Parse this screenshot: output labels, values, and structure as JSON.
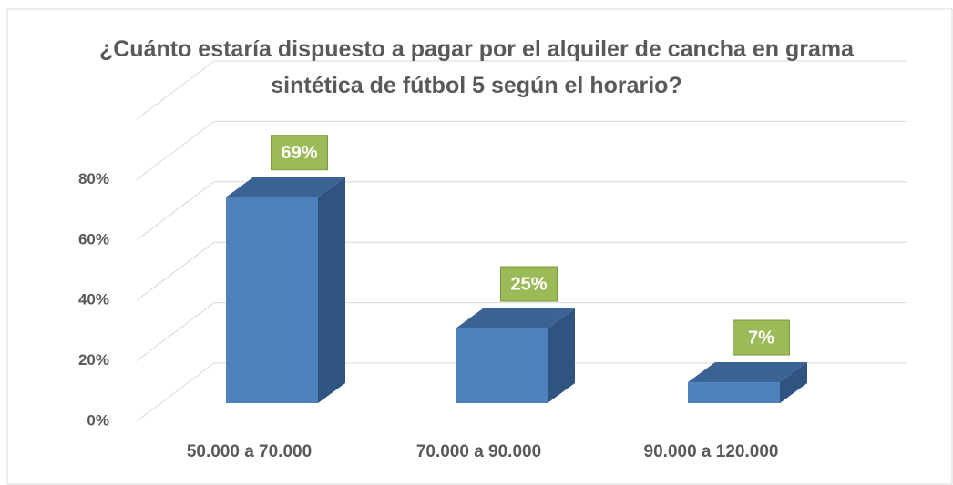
{
  "chart_data": {
    "type": "bar3d",
    "title": "¿Cuánto estaría dispuesto a pagar por el alquiler de cancha en grama sintética de fútbol 5 según el horario?",
    "categories": [
      "50.000 a 70.000",
      "70.000 a 90.000",
      "90.000 a 120.000"
    ],
    "values": [
      69,
      25,
      7
    ],
    "value_labels": [
      "69%",
      "25%",
      "7%"
    ],
    "color": "#4f81bd",
    "label_color": "#9bbb59",
    "ylim": [
      0,
      100
    ],
    "yticks": [
      {
        "value": 0,
        "label": "0%"
      },
      {
        "value": 20,
        "label": "20%"
      },
      {
        "value": 40,
        "label": "40%"
      },
      {
        "value": 60,
        "label": "60%"
      },
      {
        "value": 80,
        "label": "80%"
      }
    ],
    "grid": true
  }
}
